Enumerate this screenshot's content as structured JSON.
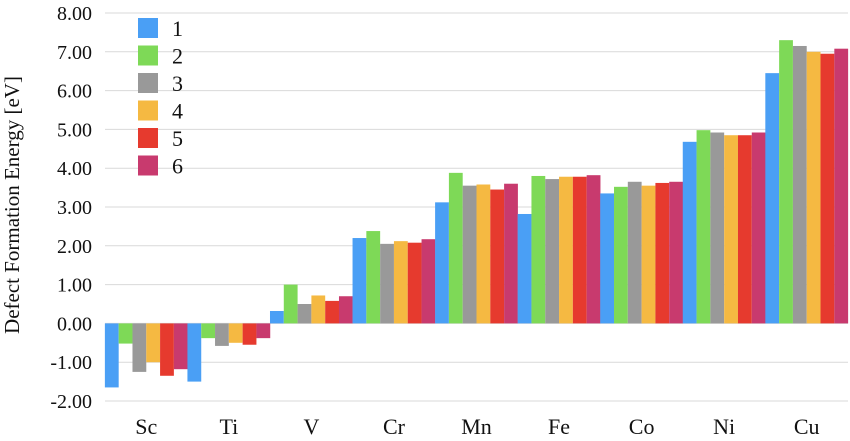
{
  "chart_data": {
    "type": "bar",
    "ylabel": "Defect Formation Energy [eV]",
    "xlabel": "",
    "ylim": [
      -2.0,
      8.0
    ],
    "yticks": [
      "-2.00",
      "-1.00",
      "0.00",
      "1.00",
      "2.00",
      "3.00",
      "4.00",
      "5.00",
      "6.00",
      "7.00",
      "8.00"
    ],
    "grid": true,
    "legend_position": "top-left",
    "categories": [
      "Sc",
      "Ti",
      "V",
      "Cr",
      "Mn",
      "Fe",
      "Co",
      "Ni",
      "Cu"
    ],
    "series": [
      {
        "name": "1",
        "color": "#4a9ff5",
        "values": [
          -1.65,
          -1.5,
          0.32,
          2.2,
          3.12,
          2.82,
          3.35,
          4.68,
          6.45
        ]
      },
      {
        "name": "2",
        "color": "#7ed957",
        "values": [
          -0.52,
          -0.38,
          1.0,
          2.38,
          3.88,
          3.8,
          3.52,
          4.98,
          7.3
        ]
      },
      {
        "name": "3",
        "color": "#999999",
        "values": [
          -1.25,
          -0.58,
          0.5,
          2.05,
          3.55,
          3.72,
          3.65,
          4.92,
          7.15
        ]
      },
      {
        "name": "4",
        "color": "#f5b942",
        "values": [
          -1.0,
          -0.5,
          0.72,
          2.12,
          3.58,
          3.78,
          3.55,
          4.85,
          7.0
        ]
      },
      {
        "name": "5",
        "color": "#e63a2e",
        "values": [
          -1.35,
          -0.55,
          0.58,
          2.08,
          3.45,
          3.78,
          3.62,
          4.85,
          6.95
        ]
      },
      {
        "name": "6",
        "color": "#c83a6e",
        "values": [
          -1.18,
          -0.38,
          0.7,
          2.17,
          3.6,
          3.82,
          3.65,
          4.92,
          7.08
        ]
      }
    ]
  }
}
